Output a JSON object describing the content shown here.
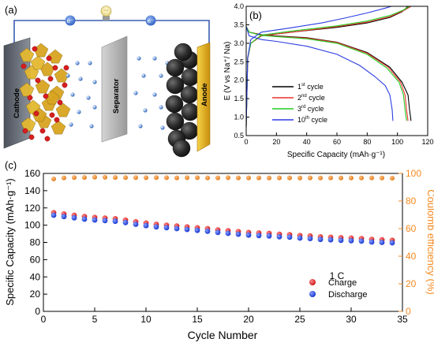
{
  "panel_labels": {
    "a": "(a)",
    "b": "(b)",
    "c": "(c)"
  },
  "schematic": {
    "electron_label": "e⁻",
    "cathode_label": "Cathode",
    "separator_label": "Separator",
    "anode_label": "Anode"
  },
  "colors": {
    "cycle1": "#000000",
    "cycle2": "#e8332b",
    "cycle3": "#22cc22",
    "cycle10": "#2b3de0",
    "charge": "#ee2020",
    "discharge": "#2040ee",
    "coulomb": "#f5891f",
    "circuit": "#3a5fb0",
    "cathode_face": "#6e7480",
    "separator_face": "#b8b8b8",
    "anode_face": "#e8b21a"
  },
  "chart_data": [
    {
      "id": "b",
      "type": "line",
      "xlabel": "Specific Capacity (mAh·g⁻¹)",
      "ylabel": "E (V vs Na⁺/ Na)",
      "xlim": [
        0,
        120
      ],
      "ylim": [
        0.5,
        4.0
      ],
      "xticks": [
        0,
        20,
        40,
        60,
        80,
        100,
        120
      ],
      "yticks": [
        0.5,
        1.0,
        1.5,
        2.0,
        2.5,
        3.0,
        3.5,
        4.0
      ],
      "legend_position": "bottom-left",
      "series": [
        {
          "name": "1st cycle",
          "sup": "st",
          "base": "1",
          "color_key": "cycle1",
          "discharge": [
            [
              0,
              3.45
            ],
            [
              2,
              3.3
            ],
            [
              10,
              3.23
            ],
            [
              20,
              3.2
            ],
            [
              40,
              3.15
            ],
            [
              60,
              3.03
            ],
            [
              80,
              2.75
            ],
            [
              95,
              2.35
            ],
            [
              103,
              1.95
            ],
            [
              107,
              1.6
            ],
            [
              108,
              1.2
            ],
            [
              109,
              0.9
            ]
          ],
          "charge": [
            [
              0,
              0.75
            ],
            [
              1,
              2.6
            ],
            [
              3,
              3.0
            ],
            [
              10,
              3.2
            ],
            [
              30,
              3.3
            ],
            [
              60,
              3.43
            ],
            [
              80,
              3.55
            ],
            [
              95,
              3.7
            ],
            [
              103,
              3.85
            ],
            [
              107,
              4.0
            ]
          ]
        },
        {
          "name": "2nd cycle",
          "sup": "nd",
          "base": "2",
          "color_key": "cycle2",
          "discharge": [
            [
              0,
              3.45
            ],
            [
              2,
              3.3
            ],
            [
              10,
              3.22
            ],
            [
              20,
              3.19
            ],
            [
              40,
              3.14
            ],
            [
              60,
              3.02
            ],
            [
              80,
              2.73
            ],
            [
              94,
              2.35
            ],
            [
              102,
              1.95
            ],
            [
              105,
              1.6
            ],
            [
              106,
              1.2
            ],
            [
              107,
              0.9
            ]
          ],
          "charge": [
            [
              0,
              0.75
            ],
            [
              1,
              2.6
            ],
            [
              3,
              3.0
            ],
            [
              10,
              3.2
            ],
            [
              30,
              3.3
            ],
            [
              60,
              3.45
            ],
            [
              80,
              3.57
            ],
            [
              95,
              3.72
            ],
            [
              104,
              3.88
            ],
            [
              109,
              4.0
            ]
          ]
        },
        {
          "name": "3rd cycle",
          "sup": "rd",
          "base": "3",
          "color_key": "cycle3",
          "discharge": [
            [
              0,
              3.45
            ],
            [
              2,
              3.3
            ],
            [
              10,
              3.21
            ],
            [
              20,
              3.18
            ],
            [
              40,
              3.12
            ],
            [
              60,
              3.0
            ],
            [
              80,
              2.7
            ],
            [
              93,
              2.33
            ],
            [
              101,
              1.95
            ],
            [
              104,
              1.6
            ],
            [
              105,
              1.2
            ],
            [
              106,
              0.9
            ]
          ],
          "charge": [
            [
              0,
              0.75
            ],
            [
              1,
              2.6
            ],
            [
              3,
              3.0
            ],
            [
              10,
              3.22
            ],
            [
              30,
              3.33
            ],
            [
              60,
              3.47
            ],
            [
              80,
              3.6
            ],
            [
              95,
              3.75
            ],
            [
              104,
              3.9
            ],
            [
              108,
              4.0
            ]
          ]
        },
        {
          "name": "10th cycle",
          "sup": "th",
          "base": "10",
          "color_key": "cycle10",
          "discharge": [
            [
              0,
              3.45
            ],
            [
              2,
              3.2
            ],
            [
              10,
              3.1
            ],
            [
              20,
              3.05
            ],
            [
              40,
              2.92
            ],
            [
              60,
              2.7
            ],
            [
              75,
              2.4
            ],
            [
              85,
              2.1
            ],
            [
              92,
              1.85
            ],
            [
              95,
              1.6
            ],
            [
              96.5,
              1.2
            ],
            [
              97,
              0.9
            ]
          ],
          "charge": [
            [
              0,
              0.75
            ],
            [
              1,
              2.6
            ],
            [
              3,
              3.1
            ],
            [
              10,
              3.3
            ],
            [
              30,
              3.42
            ],
            [
              50,
              3.55
            ],
            [
              65,
              3.68
            ],
            [
              80,
              3.82
            ],
            [
              92,
              3.95
            ],
            [
              96,
              4.0
            ]
          ]
        }
      ]
    },
    {
      "id": "c",
      "type": "scatter",
      "xlabel": "Cycle Number",
      "ylabel": "Specific Capacity (mAh·g⁻¹)",
      "ylabel_right": "Coulomb efficiency (%)",
      "xlim": [
        0,
        35
      ],
      "ylim": [
        0,
        160
      ],
      "ylim_right": [
        0,
        100
      ],
      "xticks": [
        0,
        5,
        10,
        15,
        20,
        25,
        30,
        35
      ],
      "yticks": [
        0,
        20,
        40,
        60,
        80,
        100,
        120,
        140,
        160
      ],
      "yticks_right": [
        0,
        20,
        40,
        60,
        80,
        100
      ],
      "annotation": "1 C",
      "legend_position": "bottom-right",
      "x": [
        1,
        2,
        3,
        4,
        5,
        6,
        7,
        8,
        9,
        10,
        11,
        12,
        13,
        14,
        15,
        16,
        17,
        18,
        19,
        20,
        21,
        22,
        23,
        24,
        25,
        26,
        27,
        28,
        29,
        30,
        31,
        32,
        33,
        34
      ],
      "series": [
        {
          "name": "Charge",
          "color_key": "charge",
          "axis": "left",
          "values": [
            114.5,
            113,
            111.5,
            110,
            109,
            108.2,
            107.5,
            106,
            104,
            102.5,
            101,
            100,
            99,
            98,
            97,
            96,
            94.5,
            93.5,
            92.5,
            91.5,
            91,
            90.5,
            89.5,
            89,
            88,
            87.5,
            86.5,
            86,
            85.5,
            85,
            84.5,
            83.5,
            83,
            82.5
          ]
        },
        {
          "name": "Discharge",
          "color_key": "discharge",
          "axis": "left",
          "values": [
            111.5,
            110,
            108.5,
            107,
            106,
            105.2,
            104.5,
            103,
            101,
            99.5,
            98,
            97,
            96,
            95,
            94,
            93,
            91.5,
            90.5,
            89.5,
            88.5,
            88,
            87.5,
            86.5,
            86,
            85,
            84.5,
            83.5,
            83,
            82.5,
            82,
            81.5,
            80.5,
            80,
            79.5
          ]
        },
        {
          "name": "Coulomb efficiency",
          "color_key": "coulomb",
          "axis": "right",
          "values": [
            96,
            96.8,
            97,
            97.1,
            97.3,
            97.2,
            97.1,
            97,
            97,
            96.9,
            97,
            96.9,
            96.8,
            96.9,
            96.9,
            96.8,
            96.8,
            96.9,
            96.8,
            96.8,
            96.8,
            96.7,
            96.8,
            96.8,
            96.7,
            96.8,
            96.7,
            96.8,
            96.7,
            96.7,
            96.7,
            96.8,
            96.7,
            96.6
          ]
        }
      ]
    }
  ]
}
